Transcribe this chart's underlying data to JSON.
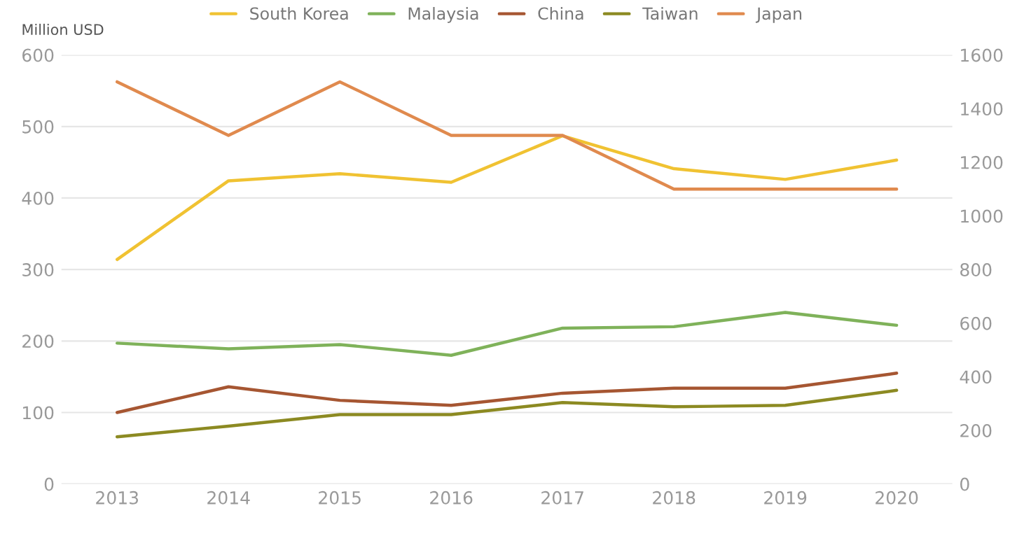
{
  "chart_data": {
    "type": "line",
    "ylabel": "Million USD",
    "categories": [
      "2013",
      "2014",
      "2015",
      "2016",
      "2017",
      "2018",
      "2019",
      "2020"
    ],
    "series": [
      {
        "name": "South Korea",
        "color": "#f0c232",
        "values": [
          314,
          424,
          434,
          422,
          487,
          441,
          426,
          453
        ]
      },
      {
        "name": "Malaysia",
        "color": "#7fb25a",
        "values": [
          197,
          189,
          195,
          180,
          218,
          220,
          240,
          222
        ]
      },
      {
        "name": "China",
        "color": "#a65632",
        "values": [
          100,
          136,
          117,
          110,
          127,
          134,
          134,
          155
        ]
      },
      {
        "name": "Taiwan",
        "color": "#8c8a22",
        "values": [
          66,
          81,
          97,
          97,
          114,
          108,
          110,
          131
        ]
      },
      {
        "name": "Japan",
        "color": "#e08a4e",
        "axis": "y2",
        "values": [
          1500,
          1300,
          1500,
          1300,
          1300,
          1100,
          1100,
          1100
        ]
      }
    ],
    "ylim": [
      0,
      600
    ],
    "yticks": [
      0,
      100,
      200,
      300,
      400,
      500,
      600
    ],
    "y2lim": [
      0,
      1600
    ],
    "y2ticks": [
      0,
      200,
      400,
      600,
      800,
      1000,
      1200,
      1400,
      1600
    ],
    "grid": "y",
    "legend": "top",
    "marker": "none",
    "line_style": "solid"
  }
}
